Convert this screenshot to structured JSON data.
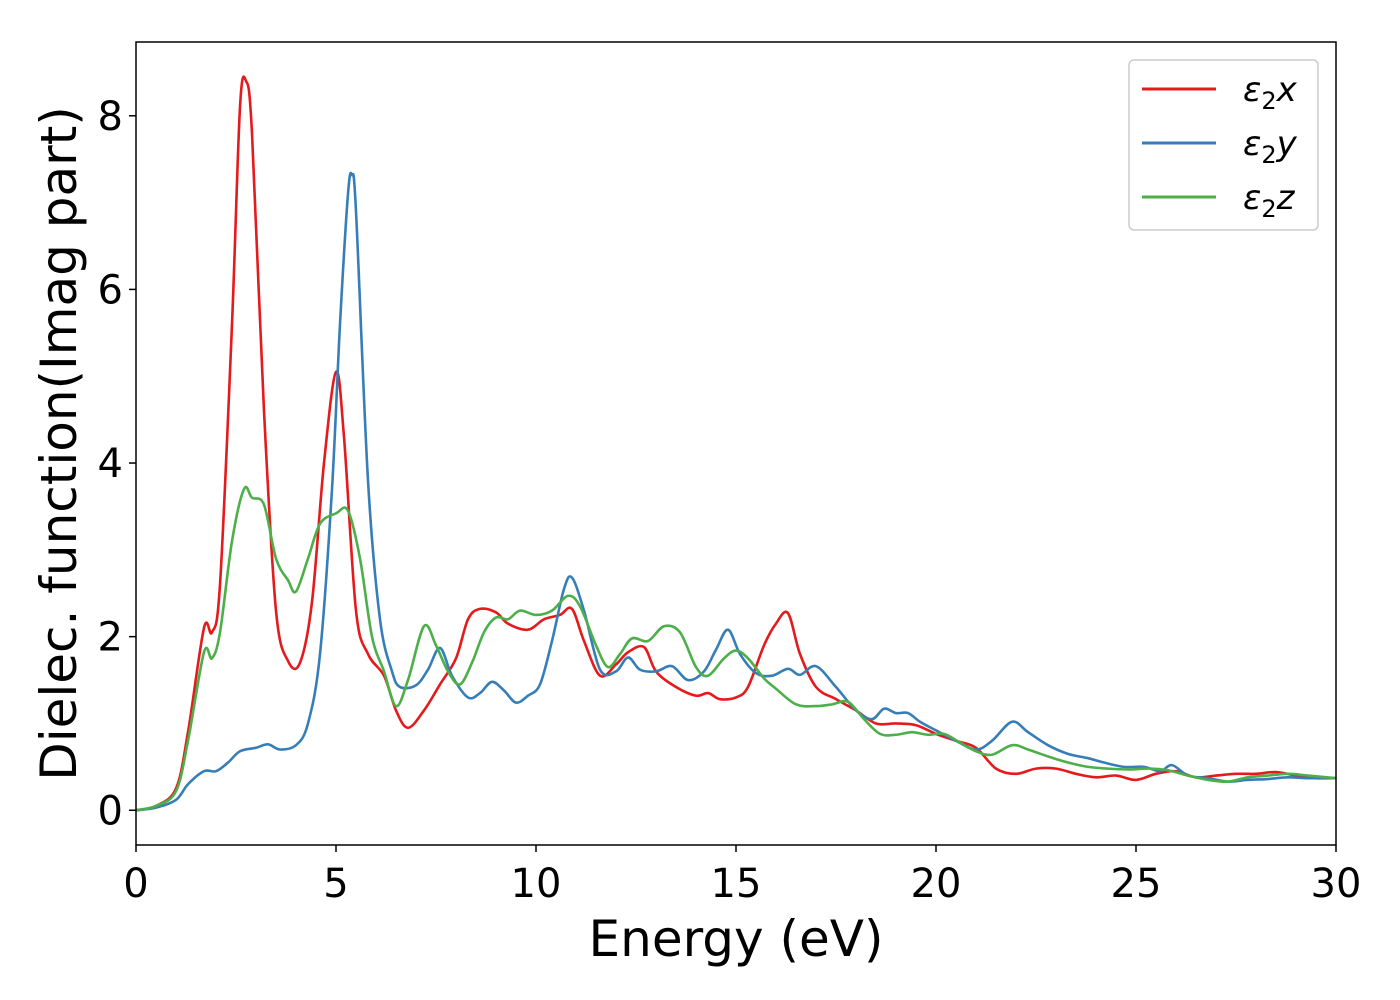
{
  "chart_data": {
    "type": "line",
    "xlabel": "Energy (eV)",
    "ylabel": "Dielec. function(Imag part)",
    "xlim": [
      0,
      30
    ],
    "ylim": [
      -0.4,
      8.85
    ],
    "xticks": [
      0,
      5,
      10,
      15,
      20,
      25,
      30
    ],
    "xtick_labels": [
      "0",
      "5",
      "10",
      "15",
      "20",
      "25",
      "30"
    ],
    "yticks": [
      0,
      2,
      4,
      6,
      8
    ],
    "ytick_labels": [
      "0",
      "2",
      "4",
      "6",
      "8"
    ],
    "grid": false,
    "legend_position": "top-right",
    "series": [
      {
        "name": "ε₂x",
        "legend_main": "ε",
        "legend_sub": "2",
        "legend_suffix": "x",
        "color": "#e41a1c",
        "points": [
          [
            0,
            0
          ],
          [
            0.5,
            0.05
          ],
          [
            1.0,
            0.25
          ],
          [
            1.3,
            0.9
          ],
          [
            1.7,
            2.1
          ],
          [
            1.9,
            2.05
          ],
          [
            2.1,
            2.6
          ],
          [
            2.4,
            5.6
          ],
          [
            2.6,
            8.1
          ],
          [
            2.75,
            8.4
          ],
          [
            2.9,
            7.8
          ],
          [
            3.2,
            4.6
          ],
          [
            3.5,
            2.3
          ],
          [
            3.8,
            1.72
          ],
          [
            4.1,
            1.7
          ],
          [
            4.4,
            2.4
          ],
          [
            4.7,
            4.0
          ],
          [
            5.0,
            5.05
          ],
          [
            5.2,
            4.3
          ],
          [
            5.5,
            2.3
          ],
          [
            5.8,
            1.8
          ],
          [
            6.2,
            1.55
          ],
          [
            6.5,
            1.15
          ],
          [
            6.8,
            0.95
          ],
          [
            7.2,
            1.15
          ],
          [
            7.6,
            1.45
          ],
          [
            8.0,
            1.75
          ],
          [
            8.3,
            2.2
          ],
          [
            8.6,
            2.32
          ],
          [
            9.0,
            2.28
          ],
          [
            9.3,
            2.15
          ],
          [
            9.8,
            2.08
          ],
          [
            10.2,
            2.2
          ],
          [
            10.6,
            2.25
          ],
          [
            10.9,
            2.32
          ],
          [
            11.2,
            1.95
          ],
          [
            11.6,
            1.55
          ],
          [
            12.0,
            1.68
          ],
          [
            12.3,
            1.82
          ],
          [
            12.7,
            1.88
          ],
          [
            13.0,
            1.6
          ],
          [
            13.5,
            1.42
          ],
          [
            14.0,
            1.32
          ],
          [
            14.3,
            1.35
          ],
          [
            14.6,
            1.28
          ],
          [
            15.0,
            1.3
          ],
          [
            15.3,
            1.42
          ],
          [
            15.7,
            1.9
          ],
          [
            16.0,
            2.15
          ],
          [
            16.3,
            2.27
          ],
          [
            16.6,
            1.8
          ],
          [
            17.0,
            1.42
          ],
          [
            17.5,
            1.28
          ],
          [
            18.0,
            1.15
          ],
          [
            18.5,
            1.0
          ],
          [
            19.0,
            1.0
          ],
          [
            19.5,
            0.98
          ],
          [
            20.0,
            0.88
          ],
          [
            20.5,
            0.8
          ],
          [
            21.0,
            0.72
          ],
          [
            21.5,
            0.48
          ],
          [
            22.0,
            0.42
          ],
          [
            22.5,
            0.48
          ],
          [
            23.0,
            0.48
          ],
          [
            23.5,
            0.42
          ],
          [
            24.0,
            0.38
          ],
          [
            24.5,
            0.4
          ],
          [
            25.0,
            0.35
          ],
          [
            25.5,
            0.42
          ],
          [
            26.0,
            0.45
          ],
          [
            26.5,
            0.38
          ],
          [
            27.0,
            0.4
          ],
          [
            27.5,
            0.42
          ],
          [
            28.0,
            0.42
          ],
          [
            28.5,
            0.44
          ],
          [
            29.0,
            0.4
          ],
          [
            29.5,
            0.37
          ],
          [
            30.0,
            0.37
          ]
        ]
      },
      {
        "name": "ε₂y",
        "legend_main": "ε",
        "legend_sub": "2",
        "legend_suffix": "y",
        "color": "#377eb8",
        "points": [
          [
            0,
            0
          ],
          [
            0.5,
            0.03
          ],
          [
            1.0,
            0.12
          ],
          [
            1.3,
            0.3
          ],
          [
            1.7,
            0.45
          ],
          [
            2.0,
            0.45
          ],
          [
            2.3,
            0.55
          ],
          [
            2.6,
            0.68
          ],
          [
            3.0,
            0.72
          ],
          [
            3.3,
            0.76
          ],
          [
            3.6,
            0.7
          ],
          [
            4.0,
            0.75
          ],
          [
            4.3,
            1.0
          ],
          [
            4.6,
            1.8
          ],
          [
            4.9,
            3.7
          ],
          [
            5.1,
            5.6
          ],
          [
            5.3,
            7.1
          ],
          [
            5.4,
            7.32
          ],
          [
            5.5,
            6.9
          ],
          [
            5.8,
            3.8
          ],
          [
            6.1,
            2.2
          ],
          [
            6.4,
            1.6
          ],
          [
            6.6,
            1.42
          ],
          [
            7.0,
            1.44
          ],
          [
            7.3,
            1.62
          ],
          [
            7.6,
            1.87
          ],
          [
            7.9,
            1.55
          ],
          [
            8.3,
            1.3
          ],
          [
            8.6,
            1.35
          ],
          [
            8.9,
            1.48
          ],
          [
            9.2,
            1.38
          ],
          [
            9.5,
            1.24
          ],
          [
            9.8,
            1.32
          ],
          [
            10.1,
            1.45
          ],
          [
            10.4,
            1.95
          ],
          [
            10.7,
            2.55
          ],
          [
            10.9,
            2.68
          ],
          [
            11.2,
            2.3
          ],
          [
            11.6,
            1.62
          ],
          [
            12.0,
            1.6
          ],
          [
            12.3,
            1.76
          ],
          [
            12.6,
            1.62
          ],
          [
            13.0,
            1.6
          ],
          [
            13.4,
            1.66
          ],
          [
            13.8,
            1.5
          ],
          [
            14.2,
            1.6
          ],
          [
            14.5,
            1.85
          ],
          [
            14.8,
            2.08
          ],
          [
            15.1,
            1.8
          ],
          [
            15.5,
            1.58
          ],
          [
            15.9,
            1.55
          ],
          [
            16.3,
            1.63
          ],
          [
            16.6,
            1.56
          ],
          [
            17.0,
            1.66
          ],
          [
            17.5,
            1.42
          ],
          [
            18.0,
            1.15
          ],
          [
            18.4,
            1.05
          ],
          [
            18.7,
            1.17
          ],
          [
            19.0,
            1.12
          ],
          [
            19.3,
            1.12
          ],
          [
            19.6,
            1.02
          ],
          [
            20.0,
            0.92
          ],
          [
            20.5,
            0.8
          ],
          [
            21.0,
            0.7
          ],
          [
            21.4,
            0.8
          ],
          [
            21.9,
            1.02
          ],
          [
            22.3,
            0.9
          ],
          [
            22.8,
            0.75
          ],
          [
            23.3,
            0.65
          ],
          [
            23.8,
            0.6
          ],
          [
            24.2,
            0.55
          ],
          [
            24.7,
            0.5
          ],
          [
            25.2,
            0.5
          ],
          [
            25.6,
            0.45
          ],
          [
            25.9,
            0.52
          ],
          [
            26.3,
            0.4
          ],
          [
            26.8,
            0.37
          ],
          [
            27.3,
            0.33
          ],
          [
            27.8,
            0.35
          ],
          [
            28.3,
            0.36
          ],
          [
            28.8,
            0.38
          ],
          [
            29.3,
            0.37
          ],
          [
            30.0,
            0.37
          ]
        ]
      },
      {
        "name": "ε₂z",
        "legend_main": "ε",
        "legend_sub": "2",
        "legend_suffix": "z",
        "color": "#4daf4a",
        "points": [
          [
            0,
            0
          ],
          [
            0.5,
            0.05
          ],
          [
            1.0,
            0.22
          ],
          [
            1.3,
            0.8
          ],
          [
            1.7,
            1.82
          ],
          [
            1.9,
            1.75
          ],
          [
            2.1,
            2.05
          ],
          [
            2.4,
            3.1
          ],
          [
            2.7,
            3.7
          ],
          [
            2.9,
            3.6
          ],
          [
            3.2,
            3.52
          ],
          [
            3.5,
            2.9
          ],
          [
            3.8,
            2.65
          ],
          [
            4.0,
            2.52
          ],
          [
            4.3,
            2.9
          ],
          [
            4.6,
            3.3
          ],
          [
            5.0,
            3.42
          ],
          [
            5.3,
            3.45
          ],
          [
            5.6,
            2.9
          ],
          [
            5.9,
            2.0
          ],
          [
            6.2,
            1.6
          ],
          [
            6.5,
            1.2
          ],
          [
            6.8,
            1.5
          ],
          [
            7.2,
            2.12
          ],
          [
            7.5,
            1.9
          ],
          [
            7.8,
            1.6
          ],
          [
            8.1,
            1.45
          ],
          [
            8.4,
            1.7
          ],
          [
            8.7,
            2.05
          ],
          [
            9.0,
            2.22
          ],
          [
            9.3,
            2.2
          ],
          [
            9.6,
            2.3
          ],
          [
            10.0,
            2.25
          ],
          [
            10.4,
            2.3
          ],
          [
            10.8,
            2.47
          ],
          [
            11.1,
            2.35
          ],
          [
            11.5,
            1.9
          ],
          [
            11.8,
            1.65
          ],
          [
            12.1,
            1.8
          ],
          [
            12.4,
            1.98
          ],
          [
            12.8,
            1.95
          ],
          [
            13.2,
            2.12
          ],
          [
            13.6,
            2.05
          ],
          [
            14.0,
            1.65
          ],
          [
            14.3,
            1.55
          ],
          [
            14.7,
            1.75
          ],
          [
            15.0,
            1.84
          ],
          [
            15.3,
            1.75
          ],
          [
            15.7,
            1.52
          ],
          [
            16.0,
            1.4
          ],
          [
            16.5,
            1.22
          ],
          [
            17.0,
            1.2
          ],
          [
            17.4,
            1.22
          ],
          [
            17.8,
            1.25
          ],
          [
            18.2,
            1.05
          ],
          [
            18.6,
            0.88
          ],
          [
            19.0,
            0.87
          ],
          [
            19.4,
            0.9
          ],
          [
            19.8,
            0.87
          ],
          [
            20.2,
            0.88
          ],
          [
            20.6,
            0.78
          ],
          [
            21.0,
            0.68
          ],
          [
            21.4,
            0.64
          ],
          [
            21.9,
            0.75
          ],
          [
            22.3,
            0.7
          ],
          [
            22.8,
            0.62
          ],
          [
            23.3,
            0.55
          ],
          [
            23.8,
            0.5
          ],
          [
            24.3,
            0.48
          ],
          [
            24.8,
            0.47
          ],
          [
            25.3,
            0.48
          ],
          [
            25.8,
            0.46
          ],
          [
            26.3,
            0.4
          ],
          [
            26.8,
            0.35
          ],
          [
            27.3,
            0.33
          ],
          [
            27.8,
            0.38
          ],
          [
            28.3,
            0.4
          ],
          [
            28.8,
            0.42
          ],
          [
            29.3,
            0.4
          ],
          [
            30.0,
            0.37
          ]
        ]
      }
    ]
  }
}
